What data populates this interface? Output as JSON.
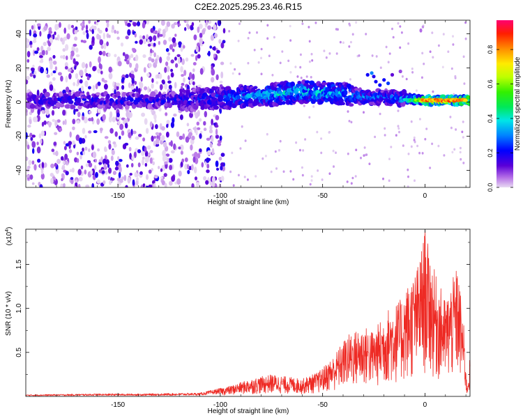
{
  "title": "C2E2.2025.295.23.46.R15",
  "chart_data": [
    {
      "type": "heatmap",
      "xlabel": "Height of straight line (km)",
      "ylabel": "Frequency (Hz)",
      "xlim": [
        -195,
        22
      ],
      "ylim": [
        -50,
        48
      ],
      "x_ticks": [
        -150,
        -100,
        -50,
        0
      ],
      "y_ticks": [
        -40,
        -20,
        0,
        20,
        40
      ],
      "colorbar": {
        "label": "Normalized spectral amplitude",
        "range": [
          0,
          0.97
        ],
        "ticks": [
          0.0,
          0.2,
          0.4,
          0.6,
          0.8
        ],
        "tick_labels": [
          "0.0",
          "0.2",
          "0.4",
          "0.6",
          "0.8"
        ]
      },
      "band_center": [
        [
          -195,
          1
        ],
        [
          -120,
          1
        ],
        [
          -80,
          4
        ],
        [
          -60,
          6
        ],
        [
          -40,
          5
        ],
        [
          -30,
          3
        ],
        [
          -20,
          3
        ],
        [
          0,
          1
        ],
        [
          20,
          1
        ]
      ],
      "peak_amplitude": [
        [
          -195,
          0.22
        ],
        [
          -110,
          0.25
        ],
        [
          -80,
          0.4
        ],
        [
          -55,
          0.45
        ],
        [
          -30,
          0.35
        ],
        [
          -20,
          0.3
        ],
        [
          -10,
          0.35
        ],
        [
          0,
          0.85
        ],
        [
          10,
          0.9
        ],
        [
          20,
          0.95
        ]
      ]
    },
    {
      "type": "line",
      "xlabel": "Height of straight line (km)",
      "ylabel": "SNR (10 * v/v)",
      "y_multiplier": "(x10",
      "y_exponent": "4",
      "xlim": [
        -195,
        22
      ],
      "ylim": [
        0,
        1.9
      ],
      "x_ticks": [
        -150,
        -100,
        -50,
        0
      ],
      "y_ticks": [
        0.5,
        1.0,
        1.5
      ],
      "y_tick_labels": [
        "0.5",
        "1.0",
        "1.5"
      ],
      "color": "#ee2a24",
      "envelope": [
        [
          -195,
          0.02
        ],
        [
          -160,
          0.03
        ],
        [
          -140,
          0.03
        ],
        [
          -110,
          0.04
        ],
        [
          -95,
          0.12
        ],
        [
          -85,
          0.2
        ],
        [
          -75,
          0.25
        ],
        [
          -60,
          0.2
        ],
        [
          -52,
          0.28
        ],
        [
          -45,
          0.45
        ],
        [
          -38,
          0.7
        ],
        [
          -30,
          0.8
        ],
        [
          -25,
          0.75
        ],
        [
          -18,
          1.0
        ],
        [
          -12,
          1.1
        ],
        [
          -8,
          1.3
        ],
        [
          -4,
          1.45
        ],
        [
          0,
          1.88
        ],
        [
          5,
          1.4
        ],
        [
          10,
          1.1
        ],
        [
          16,
          1.5
        ],
        [
          19,
          0.8
        ],
        [
          20.5,
          0.1
        ],
        [
          22,
          0.45
        ]
      ]
    }
  ]
}
